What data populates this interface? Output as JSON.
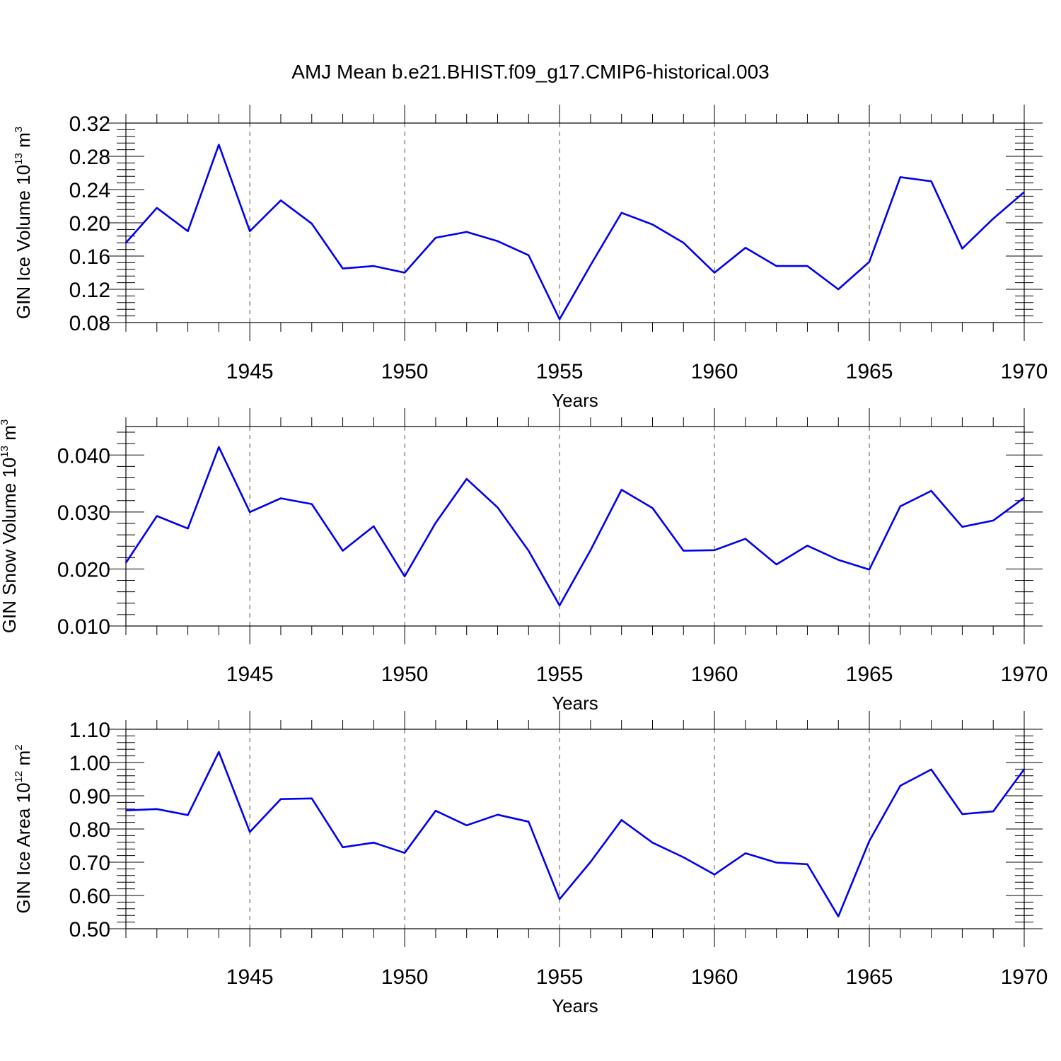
{
  "title": "AMJ Mean b.e21.BHIST.f09_g17.CMIP6-historical.003",
  "line_color": "#0000ee",
  "chart_data": [
    {
      "type": "line",
      "ylabel": "GIN Ice Volume 10",
      "ylabel_sup": "13",
      "ylabel_unit": " m",
      "ylabel_unit_sup": "3",
      "xlabel": "Years",
      "xlim": [
        1941,
        1970
      ],
      "ylim": [
        0.08,
        0.32
      ],
      "yticks": [
        0.08,
        0.12,
        0.16,
        0.2,
        0.24,
        0.28,
        0.32
      ],
      "ytick_labels": [
        "0.08",
        "0.12",
        "0.16",
        "0.20",
        "0.24",
        "0.28",
        "0.32"
      ],
      "xticks": [
        1945,
        1950,
        1955,
        1960,
        1965,
        1970
      ],
      "xtick_labels": [
        "1945",
        "1950",
        "1955",
        "1960",
        "1965",
        "1970"
      ],
      "grid_x": true,
      "x": [
        1941,
        1942,
        1943,
        1944,
        1945,
        1946,
        1947,
        1948,
        1949,
        1950,
        1951,
        1952,
        1953,
        1954,
        1955,
        1956,
        1957,
        1958,
        1959,
        1960,
        1961,
        1962,
        1963,
        1964,
        1965,
        1966,
        1967,
        1968,
        1969,
        1970
      ],
      "values": [
        0.176,
        0.218,
        0.19,
        0.294,
        0.19,
        0.227,
        0.199,
        0.145,
        0.148,
        0.14,
        0.182,
        0.189,
        0.178,
        0.161,
        0.084,
        0.149,
        0.212,
        0.198,
        0.176,
        0.14,
        0.17,
        0.148,
        0.148,
        0.12,
        0.153,
        0.255,
        0.25,
        0.169,
        0.205,
        0.237
      ]
    },
    {
      "type": "line",
      "ylabel": "GIN Snow Volume 10",
      "ylabel_sup": "13",
      "ylabel_unit": " m",
      "ylabel_unit_sup": "3",
      "xlabel": "Years",
      "xlim": [
        1941,
        1970
      ],
      "ylim": [
        0.01,
        0.045
      ],
      "yticks": [
        0.01,
        0.02,
        0.03,
        0.04
      ],
      "ytick_labels": [
        "0.010",
        "0.020",
        "0.030",
        "0.040"
      ],
      "xticks": [
        1945,
        1950,
        1955,
        1960,
        1965,
        1970
      ],
      "xtick_labels": [
        "1945",
        "1950",
        "1955",
        "1960",
        "1965",
        "1970"
      ],
      "grid_x": true,
      "x": [
        1941,
        1942,
        1943,
        1944,
        1945,
        1946,
        1947,
        1948,
        1949,
        1950,
        1951,
        1952,
        1953,
        1954,
        1955,
        1956,
        1957,
        1958,
        1959,
        1960,
        1961,
        1962,
        1963,
        1964,
        1965,
        1966,
        1967,
        1968,
        1969,
        1970
      ],
      "values": [
        0.0211,
        0.0293,
        0.0271,
        0.0414,
        0.03,
        0.0324,
        0.0314,
        0.0232,
        0.0275,
        0.0187,
        0.0281,
        0.0358,
        0.0308,
        0.0232,
        0.0136,
        0.0233,
        0.0339,
        0.0307,
        0.0232,
        0.0233,
        0.0253,
        0.0208,
        0.0241,
        0.0216,
        0.0199,
        0.031,
        0.0337,
        0.0274,
        0.0285,
        0.0325
      ]
    },
    {
      "type": "line",
      "ylabel": "GIN Ice Area 10",
      "ylabel_sup": "12",
      "ylabel_unit": " m",
      "ylabel_unit_sup": "2",
      "xlabel": "Years",
      "xlim": [
        1941,
        1970
      ],
      "ylim": [
        0.5,
        1.1
      ],
      "yticks": [
        0.5,
        0.6,
        0.7,
        0.8,
        0.9,
        1.0,
        1.1
      ],
      "ytick_labels": [
        "0.50",
        "0.60",
        "0.70",
        "0.80",
        "0.90",
        "1.00",
        "1.10"
      ],
      "xticks": [
        1945,
        1950,
        1955,
        1960,
        1965,
        1970
      ],
      "xtick_labels": [
        "1945",
        "1950",
        "1955",
        "1960",
        "1965",
        "1970"
      ],
      "grid_x": true,
      "x": [
        1941,
        1942,
        1943,
        1944,
        1945,
        1946,
        1947,
        1948,
        1949,
        1950,
        1951,
        1952,
        1953,
        1954,
        1955,
        1956,
        1957,
        1958,
        1959,
        1960,
        1961,
        1962,
        1963,
        1964,
        1965,
        1966,
        1967,
        1968,
        1969,
        1970
      ],
      "values": [
        0.856,
        0.86,
        0.842,
        1.032,
        0.791,
        0.89,
        0.892,
        0.745,
        0.759,
        0.728,
        0.855,
        0.811,
        0.843,
        0.822,
        0.589,
        0.701,
        0.827,
        0.759,
        0.715,
        0.663,
        0.727,
        0.699,
        0.694,
        0.537,
        0.764,
        0.93,
        0.979,
        0.845,
        0.853,
        0.98
      ]
    }
  ]
}
